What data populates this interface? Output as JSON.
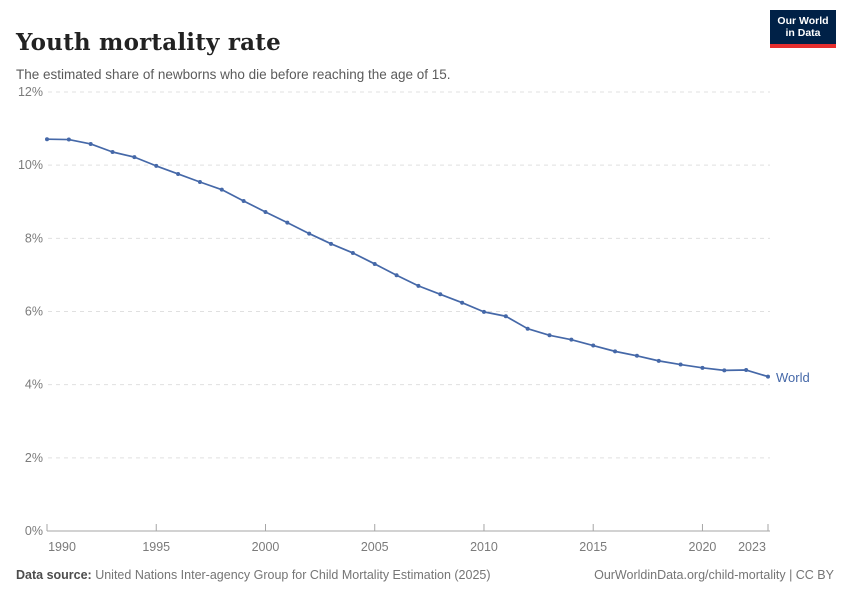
{
  "header": {
    "title": "Youth mortality rate",
    "subtitle": "The estimated share of newborns who die before reaching the age of 15.",
    "logo": {
      "line1": "Our World",
      "line2": "in Data"
    }
  },
  "footer": {
    "source_label": "Data source:",
    "source_text": " United Nations Inter-agency Group for Child Mortality Estimation (2025)",
    "link_text": "OurWorldinData.org/child-mortality | CC BY"
  },
  "colors": {
    "series_line": "#4568a8",
    "gridline": "#e0e0e0",
    "axis_line": "#a5a5a5",
    "tick_label": "#7b7b7b",
    "logo_background": "#002147",
    "logo_accent": "#e62e2e"
  },
  "chart_data": {
    "type": "line",
    "title": "Youth mortality rate",
    "subtitle": "The estimated share of newborns who die before reaching the age of 15.",
    "xlabel": "",
    "ylabel": "",
    "ylim": [
      0,
      12
    ],
    "grid": "horizontal-dashed",
    "legend_position": "end-of-line",
    "ytick_values": [
      0,
      2,
      4,
      6,
      8,
      10,
      12
    ],
    "ytick_labels": [
      "0%",
      "2%",
      "4%",
      "6%",
      "8%",
      "10%",
      "12%"
    ],
    "xtick_values": [
      1990,
      1995,
      2000,
      2005,
      2010,
      2015,
      2020,
      2023
    ],
    "series": [
      {
        "name": "World",
        "x": [
          1990,
          1991,
          1992,
          1993,
          1994,
          1995,
          1996,
          1997,
          1998,
          1999,
          2000,
          2001,
          2002,
          2003,
          2004,
          2005,
          2006,
          2007,
          2008,
          2009,
          2010,
          2011,
          2012,
          2013,
          2014,
          2015,
          2016,
          2017,
          2018,
          2019,
          2020,
          2021,
          2022,
          2023
        ],
        "values": [
          10.71,
          10.7,
          10.58,
          10.36,
          10.22,
          9.98,
          9.76,
          9.54,
          9.33,
          9.02,
          8.72,
          8.43,
          8.13,
          7.85,
          7.6,
          7.3,
          6.99,
          6.7,
          6.47,
          6.24,
          5.99,
          5.87,
          5.53,
          5.35,
          5.23,
          5.07,
          4.91,
          4.79,
          4.65,
          4.55,
          4.46,
          4.39,
          4.4,
          4.22
        ]
      }
    ]
  }
}
